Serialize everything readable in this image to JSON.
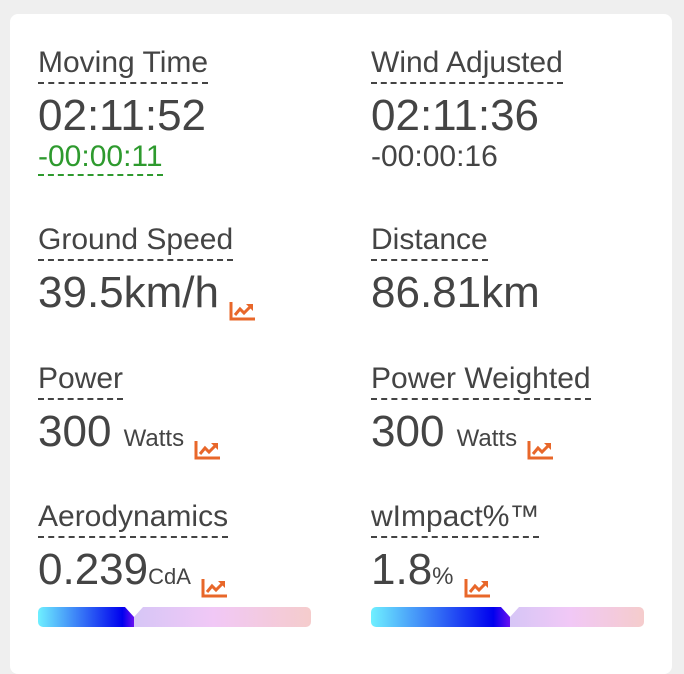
{
  "accent_color": "#e8672a",
  "metrics": {
    "moving_time": {
      "label": "Moving Time",
      "value": "02:11:52",
      "delta": "-00:00:11",
      "delta_color": "#2e9a2e"
    },
    "wind_adjusted": {
      "label": "Wind Adjusted",
      "value": "02:11:36",
      "delta": "-00:00:16"
    },
    "ground_speed": {
      "label": "Ground Speed",
      "value": "39.5",
      "unit": "km/h",
      "icon": "chart-line-icon"
    },
    "distance": {
      "label": "Distance",
      "value": "86.81",
      "unit": "km"
    },
    "power": {
      "label": "Power",
      "value": "300",
      "unit": "Watts",
      "icon": "chart-line-icon"
    },
    "power_weighted": {
      "label": "Power Weighted",
      "value": "300",
      "unit": "Watts",
      "icon": "chart-line-icon"
    },
    "aerodynamics": {
      "label": "Aerodynamics",
      "value": "0.239",
      "unit": "CdA",
      "icon": "chart-line-icon",
      "gauge_percent": 35
    },
    "wimpact": {
      "label": "wImpact%™",
      "value": "1.8",
      "unit": "%",
      "icon": "chart-line-icon",
      "gauge_percent": 51
    }
  }
}
